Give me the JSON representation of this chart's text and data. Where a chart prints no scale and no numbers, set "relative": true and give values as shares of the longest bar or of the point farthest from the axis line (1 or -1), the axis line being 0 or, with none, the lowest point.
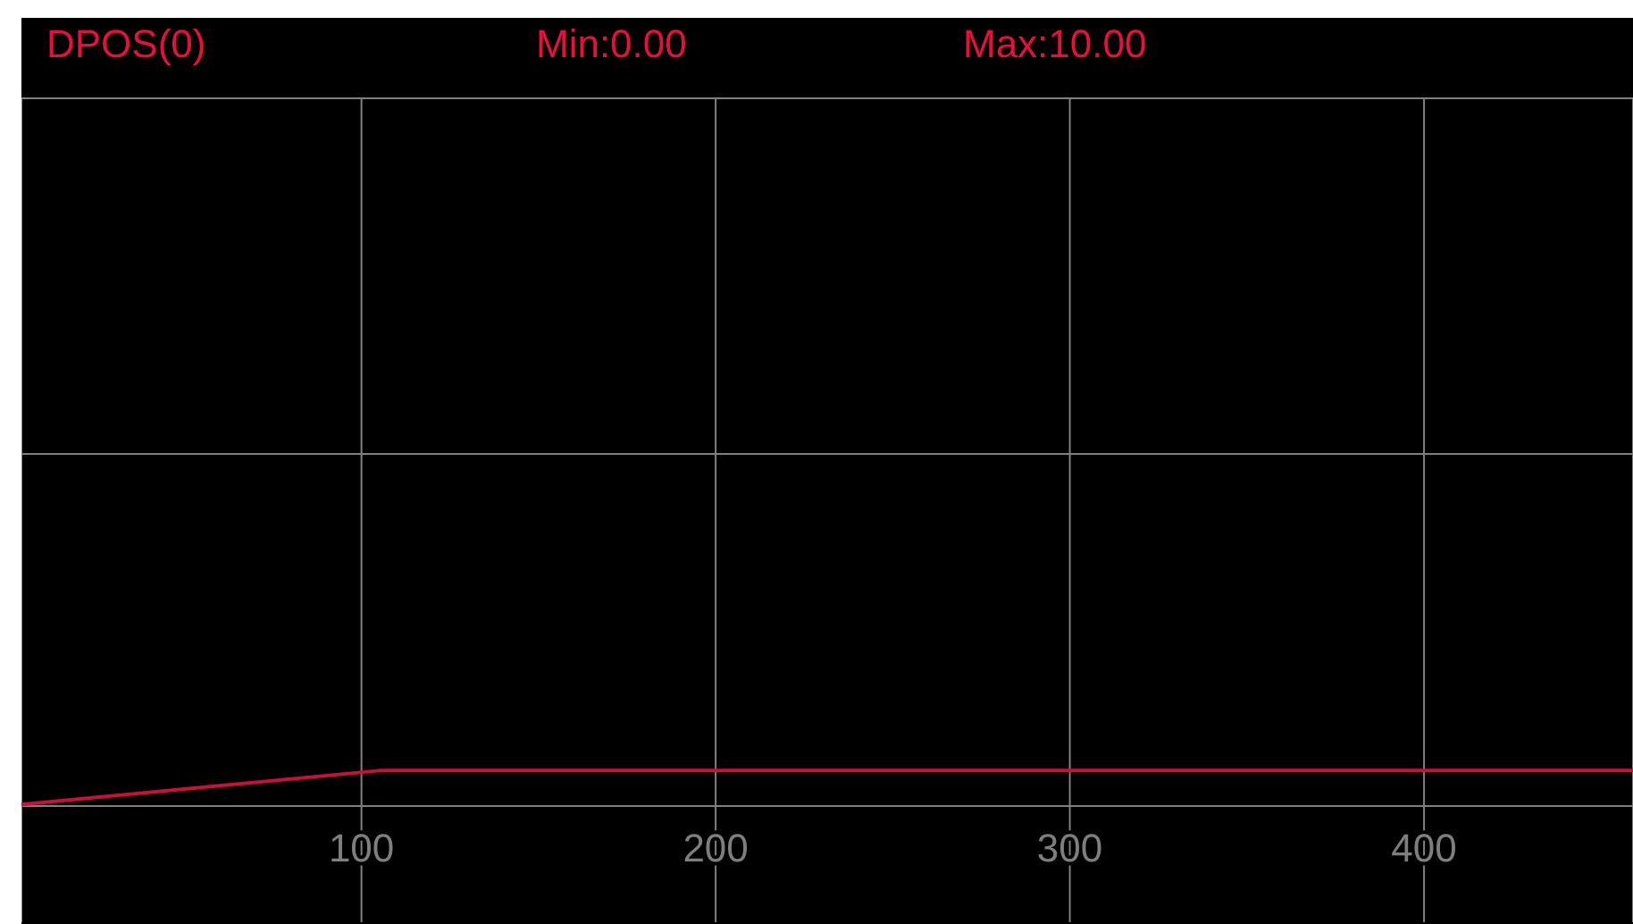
{
  "chart_data": {
    "type": "line",
    "title": "DPOS(0)",
    "annotations": [
      "Min:0.00",
      "Max:10.00"
    ],
    "relative": true,
    "x": [
      4,
      105,
      459
    ],
    "series": [
      {
        "color": "#c8103a",
        "values": [
          0,
          1,
          1
        ]
      }
    ],
    "xlim": [
      4,
      459
    ],
    "xticks": [
      100,
      200,
      300,
      400
    ],
    "grid": true,
    "tick_labels": "x",
    "marker": "none",
    "line_style": "solid"
  }
}
